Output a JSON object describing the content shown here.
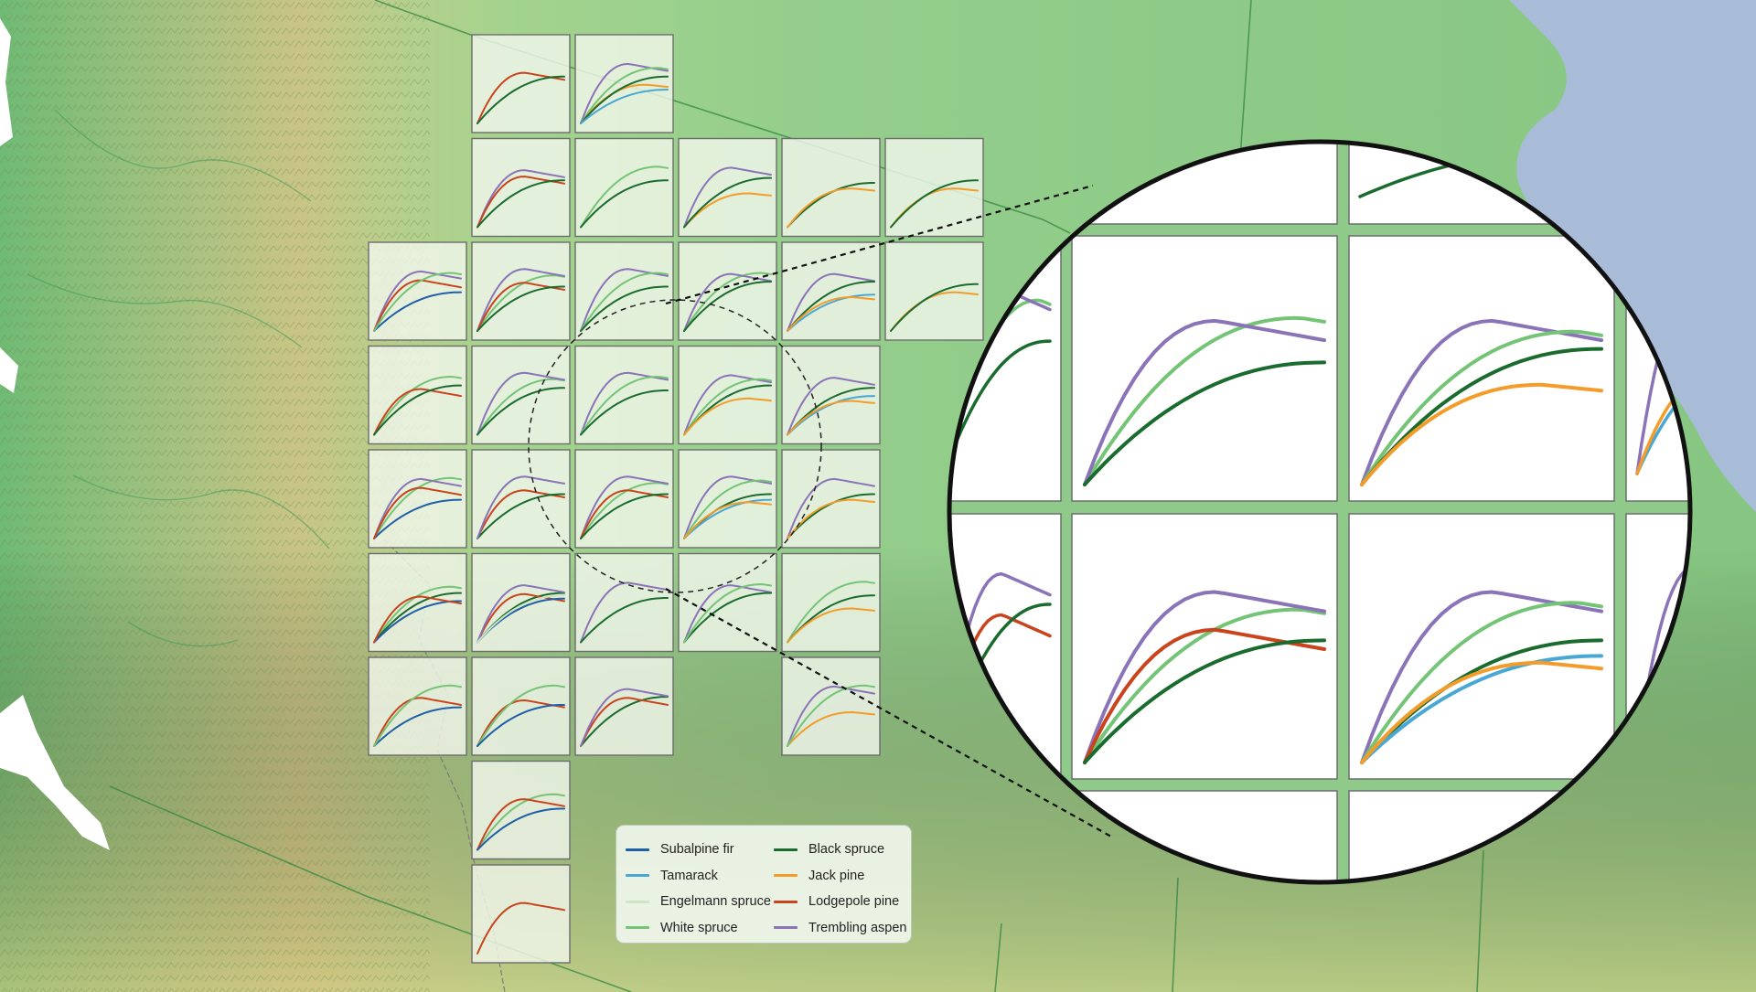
{
  "colors": {
    "subalpine_fir": "#1f5fa8",
    "tamarack": "#49a7d4",
    "engelmann_spruce": "#cfe6c6",
    "white_spruce": "#74c476",
    "black_spruce": "#1a6b2e",
    "jack_pine": "#f39c2a",
    "lodgepole_pine": "#c9441c",
    "trembling_aspen": "#8b73b8",
    "ocean": "#a8bcd8",
    "lowland": "#8fcb8a",
    "mountain": "#b7c07f"
  },
  "legend": {
    "items": [
      {
        "label": "Subalpine fir",
        "color": "#1f5fa8"
      },
      {
        "label": "Tamarack",
        "color": "#49a7d4"
      },
      {
        "label": "Engelmann spruce",
        "color": "#cfe6c6"
      },
      {
        "label": "White spruce",
        "color": "#74c476"
      },
      {
        "label": "Black spruce",
        "color": "#1a6b2e"
      },
      {
        "label": "Jack pine",
        "color": "#f39c2a"
      },
      {
        "label": "Lodgepole pine",
        "color": "#c9441c"
      },
      {
        "label": "Trembling aspen",
        "color": "#8b73b8"
      }
    ]
  },
  "panels": [
    {
      "col": 1,
      "row": 0,
      "species": [
        "lodgepole_pine",
        "black_spruce"
      ]
    },
    {
      "col": 2,
      "row": 0,
      "species": [
        "trembling_aspen",
        "white_spruce",
        "jack_pine",
        "black_spruce",
        "tamarack"
      ]
    },
    {
      "col": 1,
      "row": 1,
      "species": [
        "trembling_aspen",
        "lodgepole_pine",
        "black_spruce"
      ]
    },
    {
      "col": 2,
      "row": 1,
      "species": [
        "white_spruce",
        "black_spruce"
      ]
    },
    {
      "col": 3,
      "row": 1,
      "species": [
        "trembling_aspen",
        "jack_pine",
        "black_spruce"
      ]
    },
    {
      "col": 4,
      "row": 1,
      "species": [
        "black_spruce",
        "jack_pine"
      ]
    },
    {
      "col": 5,
      "row": 1,
      "species": [
        "jack_pine",
        "black_spruce"
      ]
    },
    {
      "col": 0,
      "row": 2,
      "species": [
        "trembling_aspen",
        "subalpine_fir",
        "lodgepole_pine",
        "white_spruce"
      ]
    },
    {
      "col": 1,
      "row": 2,
      "species": [
        "white_spruce",
        "trembling_aspen",
        "lodgepole_pine",
        "black_spruce"
      ]
    },
    {
      "col": 2,
      "row": 2,
      "species": [
        "trembling_aspen",
        "white_spruce",
        "black_spruce"
      ]
    },
    {
      "col": 3,
      "row": 2,
      "species": [
        "white_spruce",
        "trembling_aspen",
        "black_spruce"
      ]
    },
    {
      "col": 4,
      "row": 2,
      "species": [
        "trembling_aspen",
        "black_spruce",
        "tamarack",
        "jack_pine"
      ]
    },
    {
      "col": 5,
      "row": 2,
      "species": [
        "jack_pine",
        "black_spruce"
      ]
    },
    {
      "col": 0,
      "row": 3,
      "species": [
        "white_spruce",
        "lodgepole_pine",
        "black_spruce"
      ]
    },
    {
      "col": 1,
      "row": 3,
      "species": [
        "white_spruce",
        "trembling_aspen",
        "black_spruce"
      ]
    },
    {
      "col": 2,
      "row": 3,
      "species": [
        "trembling_aspen",
        "white_spruce",
        "black_spruce"
      ]
    },
    {
      "col": 3,
      "row": 3,
      "species": [
        "trembling_aspen",
        "white_spruce",
        "black_spruce",
        "jack_pine"
      ]
    },
    {
      "col": 4,
      "row": 3,
      "species": [
        "trembling_aspen",
        "tamarack",
        "black_spruce",
        "jack_pine"
      ]
    },
    {
      "col": 0,
      "row": 4,
      "species": [
        "white_spruce",
        "trembling_aspen",
        "subalpine_fir",
        "lodgepole_pine"
      ]
    },
    {
      "col": 1,
      "row": 4,
      "species": [
        "lodgepole_pine",
        "black_spruce",
        "trembling_aspen"
      ]
    },
    {
      "col": 2,
      "row": 4,
      "species": [
        "white_spruce",
        "trembling_aspen",
        "lodgepole_pine",
        "black_spruce"
      ]
    },
    {
      "col": 3,
      "row": 4,
      "species": [
        "trembling_aspen",
        "white_spruce",
        "black_spruce",
        "tamarack",
        "jack_pine"
      ]
    },
    {
      "col": 4,
      "row": 4,
      "species": [
        "trembling_aspen",
        "black_spruce",
        "jack_pine"
      ]
    },
    {
      "col": 0,
      "row": 5,
      "species": [
        "white_spruce",
        "black_spruce",
        "subalpine_fir",
        "lodgepole_pine"
      ]
    },
    {
      "col": 1,
      "row": 5,
      "species": [
        "black_spruce",
        "lodgepole_pine",
        "trembling_aspen",
        "subalpine_fir",
        "engelmann_spruce"
      ]
    },
    {
      "col": 2,
      "row": 5,
      "species": [
        "trembling_aspen",
        "black_spruce"
      ]
    },
    {
      "col": 3,
      "row": 5,
      "species": [
        "trembling_aspen",
        "black_spruce",
        "white_spruce"
      ]
    },
    {
      "col": 4,
      "row": 5,
      "species": [
        "white_spruce",
        "black_spruce",
        "jack_pine"
      ]
    },
    {
      "col": 0,
      "row": 6,
      "species": [
        "lodgepole_pine",
        "subalpine_fir",
        "white_spruce"
      ]
    },
    {
      "col": 1,
      "row": 6,
      "species": [
        "lodgepole_pine",
        "white_spruce",
        "subalpine_fir"
      ]
    },
    {
      "col": 2,
      "row": 6,
      "species": [
        "black_spruce",
        "lodgepole_pine",
        "trembling_aspen"
      ]
    },
    {
      "col": 4,
      "row": 6,
      "species": [
        "trembling_aspen",
        "jack_pine",
        "white_spruce"
      ]
    },
    {
      "col": 1,
      "row": 7,
      "species": [
        "white_spruce",
        "lodgepole_pine",
        "subalpine_fir"
      ]
    },
    {
      "col": 1,
      "row": 8,
      "species": [
        "lodgepole_pine"
      ]
    }
  ],
  "magnifier": {
    "panels": [
      {
        "species": [
          "white_spruce",
          "trembling_aspen",
          "black_spruce"
        ]
      },
      {
        "species": [
          "trembling_aspen",
          "white_spruce",
          "black_spruce",
          "jack_pine"
        ]
      },
      {
        "species": [
          "white_spruce",
          "trembling_aspen",
          "lodgepole_pine",
          "black_spruce"
        ]
      },
      {
        "species": [
          "trembling_aspen",
          "white_spruce",
          "black_spruce",
          "tamarack",
          "jack_pine"
        ]
      }
    ]
  }
}
